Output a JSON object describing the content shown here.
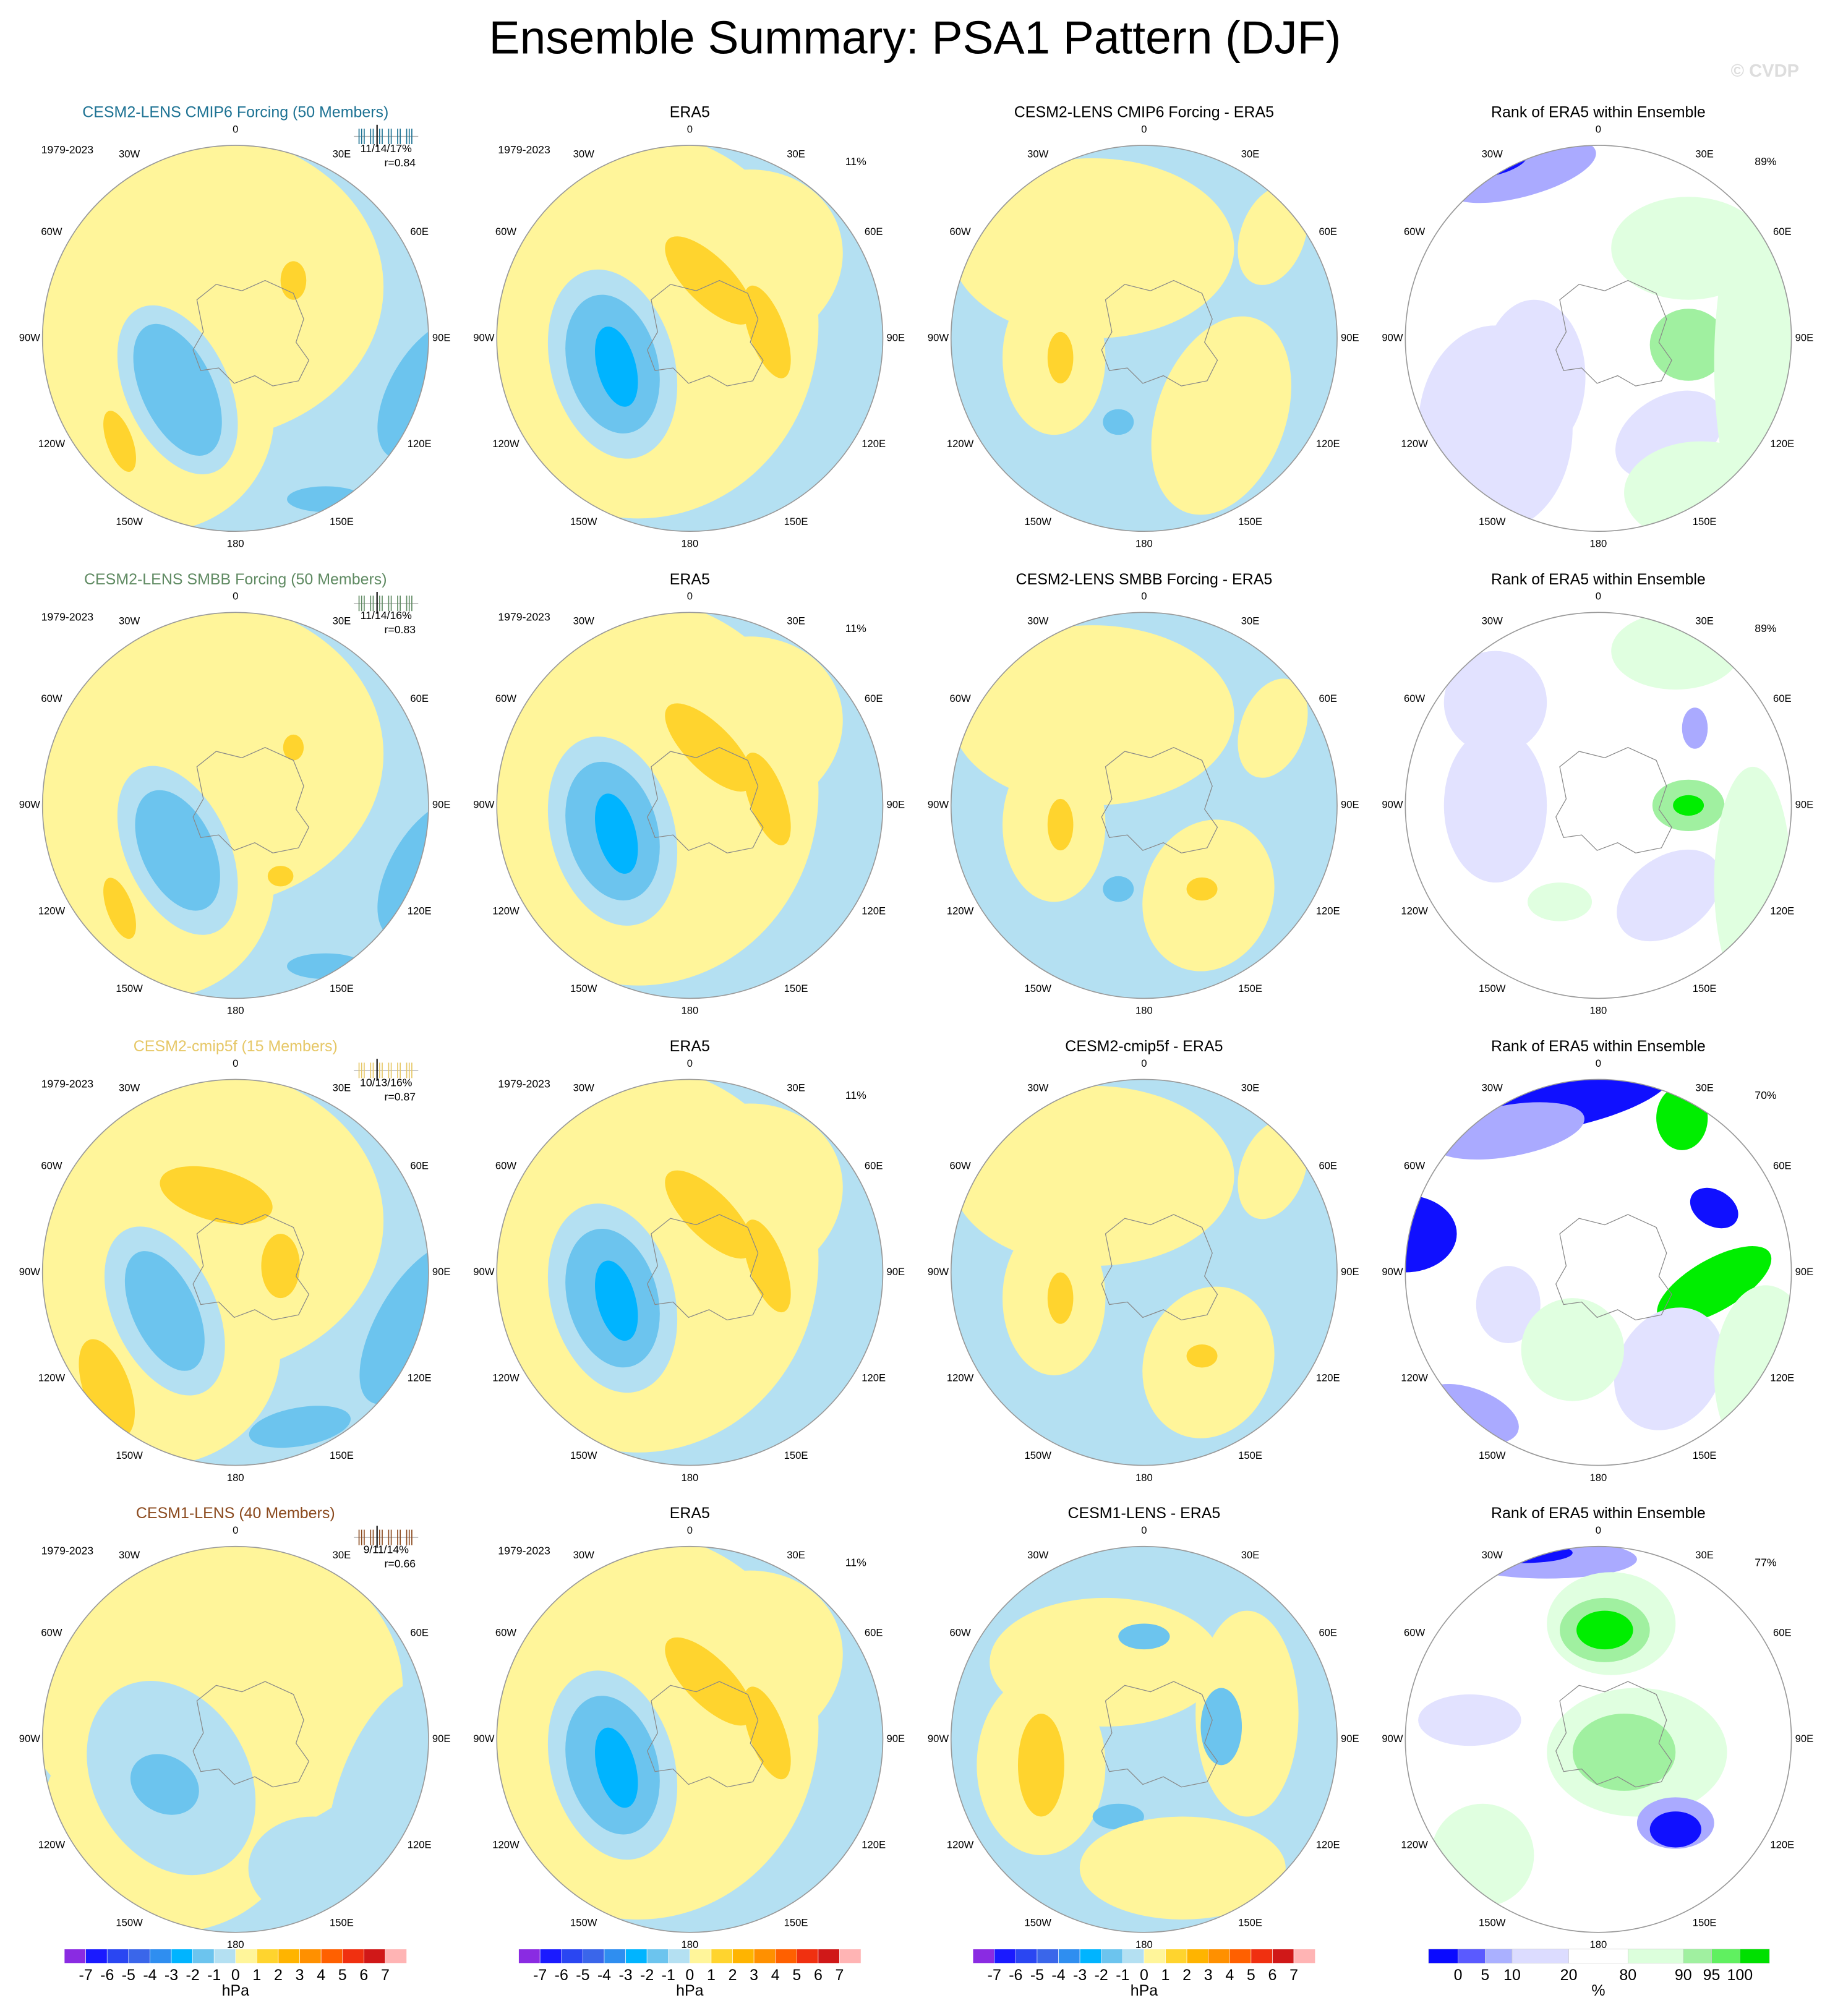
{
  "title": "Ensemble Summary: PSA1 Pattern (DJF)",
  "watermark": "© CVDP",
  "longitude_labels": [
    "0",
    "30E",
    "60E",
    "90E",
    "120E",
    "150E",
    "180",
    "150W",
    "120W",
    "90W",
    "60W",
    "30W"
  ],
  "rows": [
    {
      "model_title": "CESM2-LENS CMIP6 Forcing (50 Members)",
      "model_color": "#1d7293",
      "period": "1979-2023",
      "stats": "11/14/17%",
      "corr": "r=0.84",
      "era5_title": "ERA5",
      "era5_period": "1979-2023",
      "era5_pct": "11%",
      "diff_title": "CESM2-LENS CMIP6 Forcing - ERA5",
      "rank_title": "Rank of ERA5 within Ensemble",
      "rank_pct": "89%"
    },
    {
      "model_title": "CESM2-LENS SMBB Forcing (50 Members)",
      "model_color": "#5f8a62",
      "period": "1979-2023",
      "stats": "11/14/16%",
      "corr": "r=0.83",
      "era5_title": "ERA5",
      "era5_period": "1979-2023",
      "era5_pct": "11%",
      "diff_title": "CESM2-LENS SMBB Forcing - ERA5",
      "rank_title": "Rank of ERA5 within Ensemble",
      "rank_pct": "89%"
    },
    {
      "model_title": "CESM2-cmip5f (15 Members)",
      "model_color": "#e6c766",
      "period": "1979-2023",
      "stats": "10/13/16%",
      "corr": "r=0.87",
      "era5_title": "ERA5",
      "era5_period": "1979-2023",
      "era5_pct": "11%",
      "diff_title": "CESM2-cmip5f - ERA5",
      "rank_title": "Rank of ERA5 within Ensemble",
      "rank_pct": "70%"
    },
    {
      "model_title": "CESM1-LENS (40 Members)",
      "model_color": "#8b4a1e",
      "period": "1979-2023",
      "stats": "9/11/14%",
      "corr": "r=0.66",
      "era5_title": "ERA5",
      "era5_period": "1979-2023",
      "era5_pct": "11%",
      "diff_title": "CESM1-LENS - ERA5",
      "rank_title": "Rank of ERA5 within Ensemble",
      "rank_pct": "77%"
    }
  ],
  "colorbars": {
    "pattern": {
      "unit": "hPa",
      "labels": [
        "-7",
        "-6",
        "-5",
        "-4",
        "-3",
        "-2",
        "-1",
        "0",
        "1",
        "2",
        "3",
        "4",
        "5",
        "6",
        "7"
      ],
      "colors": [
        "#8a2be2",
        "#1a1aff",
        "#2a46f2",
        "#3a66ea",
        "#2f8ef0",
        "#00b4ff",
        "#6cc4ee",
        "#b4e0f2",
        "#fff59a",
        "#ffd42e",
        "#ffb400",
        "#ff9000",
        "#ff6000",
        "#f03010",
        "#d01818",
        "#ffb4b4"
      ]
    },
    "rank": {
      "unit": "%",
      "labels": [
        "0",
        "5",
        "10",
        "20",
        "80",
        "90",
        "95",
        "100"
      ],
      "colors": [
        "#0a0aff",
        "#5a5aff",
        "#aab0ff",
        "#dcdcff",
        "#ffffff",
        "#dcffdc",
        "#a0f0a0",
        "#60f060",
        "#00e000"
      ]
    }
  }
}
